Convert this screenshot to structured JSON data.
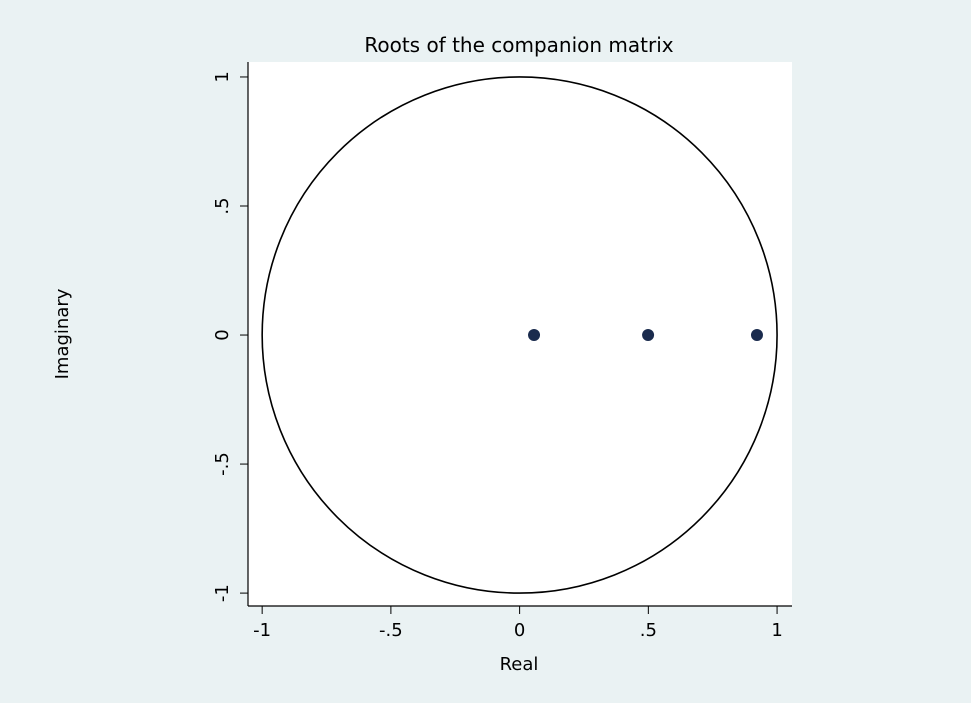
{
  "chart_data": {
    "type": "scatter",
    "title": "Roots of the companion matrix",
    "x_label": "Real",
    "y_label": "Imaginary",
    "series": [
      {
        "color": "#1a2b4d",
        "x": [
          0.056,
          0.499,
          0.922
        ],
        "values": [
          0,
          0,
          0
        ]
      }
    ],
    "xlim": [
      -1.055,
      1.058
    ],
    "ylim": [
      -1.05,
      1.058
    ],
    "xticks": [
      -1,
      {
        "value": -0.5,
        "label": "-.5"
      },
      0,
      {
        "value": 0.5,
        "label": ".5"
      },
      1
    ],
    "yticks": [
      -1,
      {
        "value": -0.5,
        "label": "-.5"
      },
      0,
      {
        "value": 0.5,
        "label": ".5"
      },
      1
    ],
    "unit_circle": true,
    "grid": false
  }
}
